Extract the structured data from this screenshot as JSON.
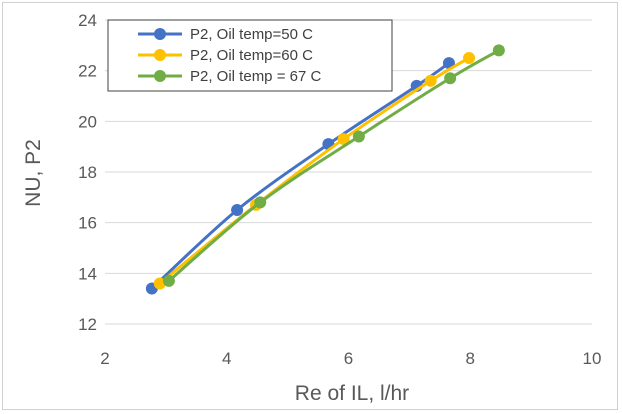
{
  "chart_data": {
    "type": "line",
    "title": "",
    "xlabel": "Re of IL, l/hr",
    "ylabel": "NU, P2",
    "xlim": [
      2,
      10
    ],
    "ylim": [
      12,
      24
    ],
    "xticks": [
      2,
      4,
      6,
      8,
      10
    ],
    "yticks": [
      12,
      14,
      16,
      18,
      20,
      22,
      24
    ],
    "grid": "horizontal",
    "legend_position": "top-left",
    "series": [
      {
        "name": "P2, Oil temp=50 C",
        "color": "#4472C4",
        "x": [
          2.77,
          4.17,
          5.67,
          7.12,
          7.65
        ],
        "y": [
          13.4,
          16.5,
          19.1,
          21.4,
          22.3
        ]
      },
      {
        "name": "P2, Oil temp=60 C",
        "color": "#FFC000",
        "x": [
          2.9,
          4.48,
          5.92,
          7.35,
          7.98
        ],
        "y": [
          13.6,
          16.7,
          19.3,
          21.6,
          22.5
        ]
      },
      {
        "name": "P2, Oil temp = 67 C",
        "color": "#70AD47",
        "x": [
          3.05,
          4.55,
          6.17,
          7.67,
          8.47
        ],
        "y": [
          13.7,
          16.8,
          19.4,
          21.7,
          22.8
        ]
      }
    ]
  }
}
